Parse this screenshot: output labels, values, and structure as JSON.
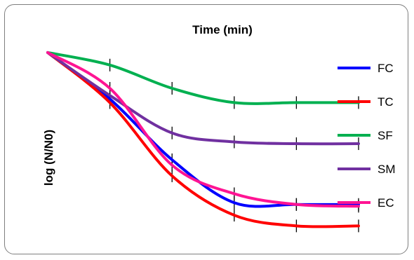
{
  "chart_data": {
    "type": "line",
    "title": "Time (min)",
    "xlabel": "",
    "ylabel": "log (N/N0)",
    "x": [
      0,
      1,
      2,
      3,
      4,
      5
    ],
    "x_tick_labels_visible": false,
    "y_tick_labels_visible": false,
    "grid": false,
    "legend_position": "right",
    "ylim": [
      -1.0,
      0.0
    ],
    "series": [
      {
        "name": "FC",
        "color": "#0000ff",
        "values": [
          0,
          -0.26,
          -0.6,
          -0.84,
          -0.85,
          -0.85
        ]
      },
      {
        "name": "TC",
        "color": "#ff0000",
        "values": [
          0,
          -0.28,
          -0.69,
          -0.91,
          -0.97,
          -0.97
        ]
      },
      {
        "name": "SF",
        "color": "#00b050",
        "values": [
          0,
          -0.07,
          -0.2,
          -0.28,
          -0.28,
          -0.28
        ]
      },
      {
        "name": "SM",
        "color": "#7030a0",
        "values": [
          0,
          -0.24,
          -0.45,
          -0.5,
          -0.51,
          -0.51
        ]
      },
      {
        "name": "EC",
        "color": "#ff1493",
        "values": [
          0,
          -0.2,
          -0.63,
          -0.79,
          -0.85,
          -0.86
        ]
      }
    ]
  }
}
